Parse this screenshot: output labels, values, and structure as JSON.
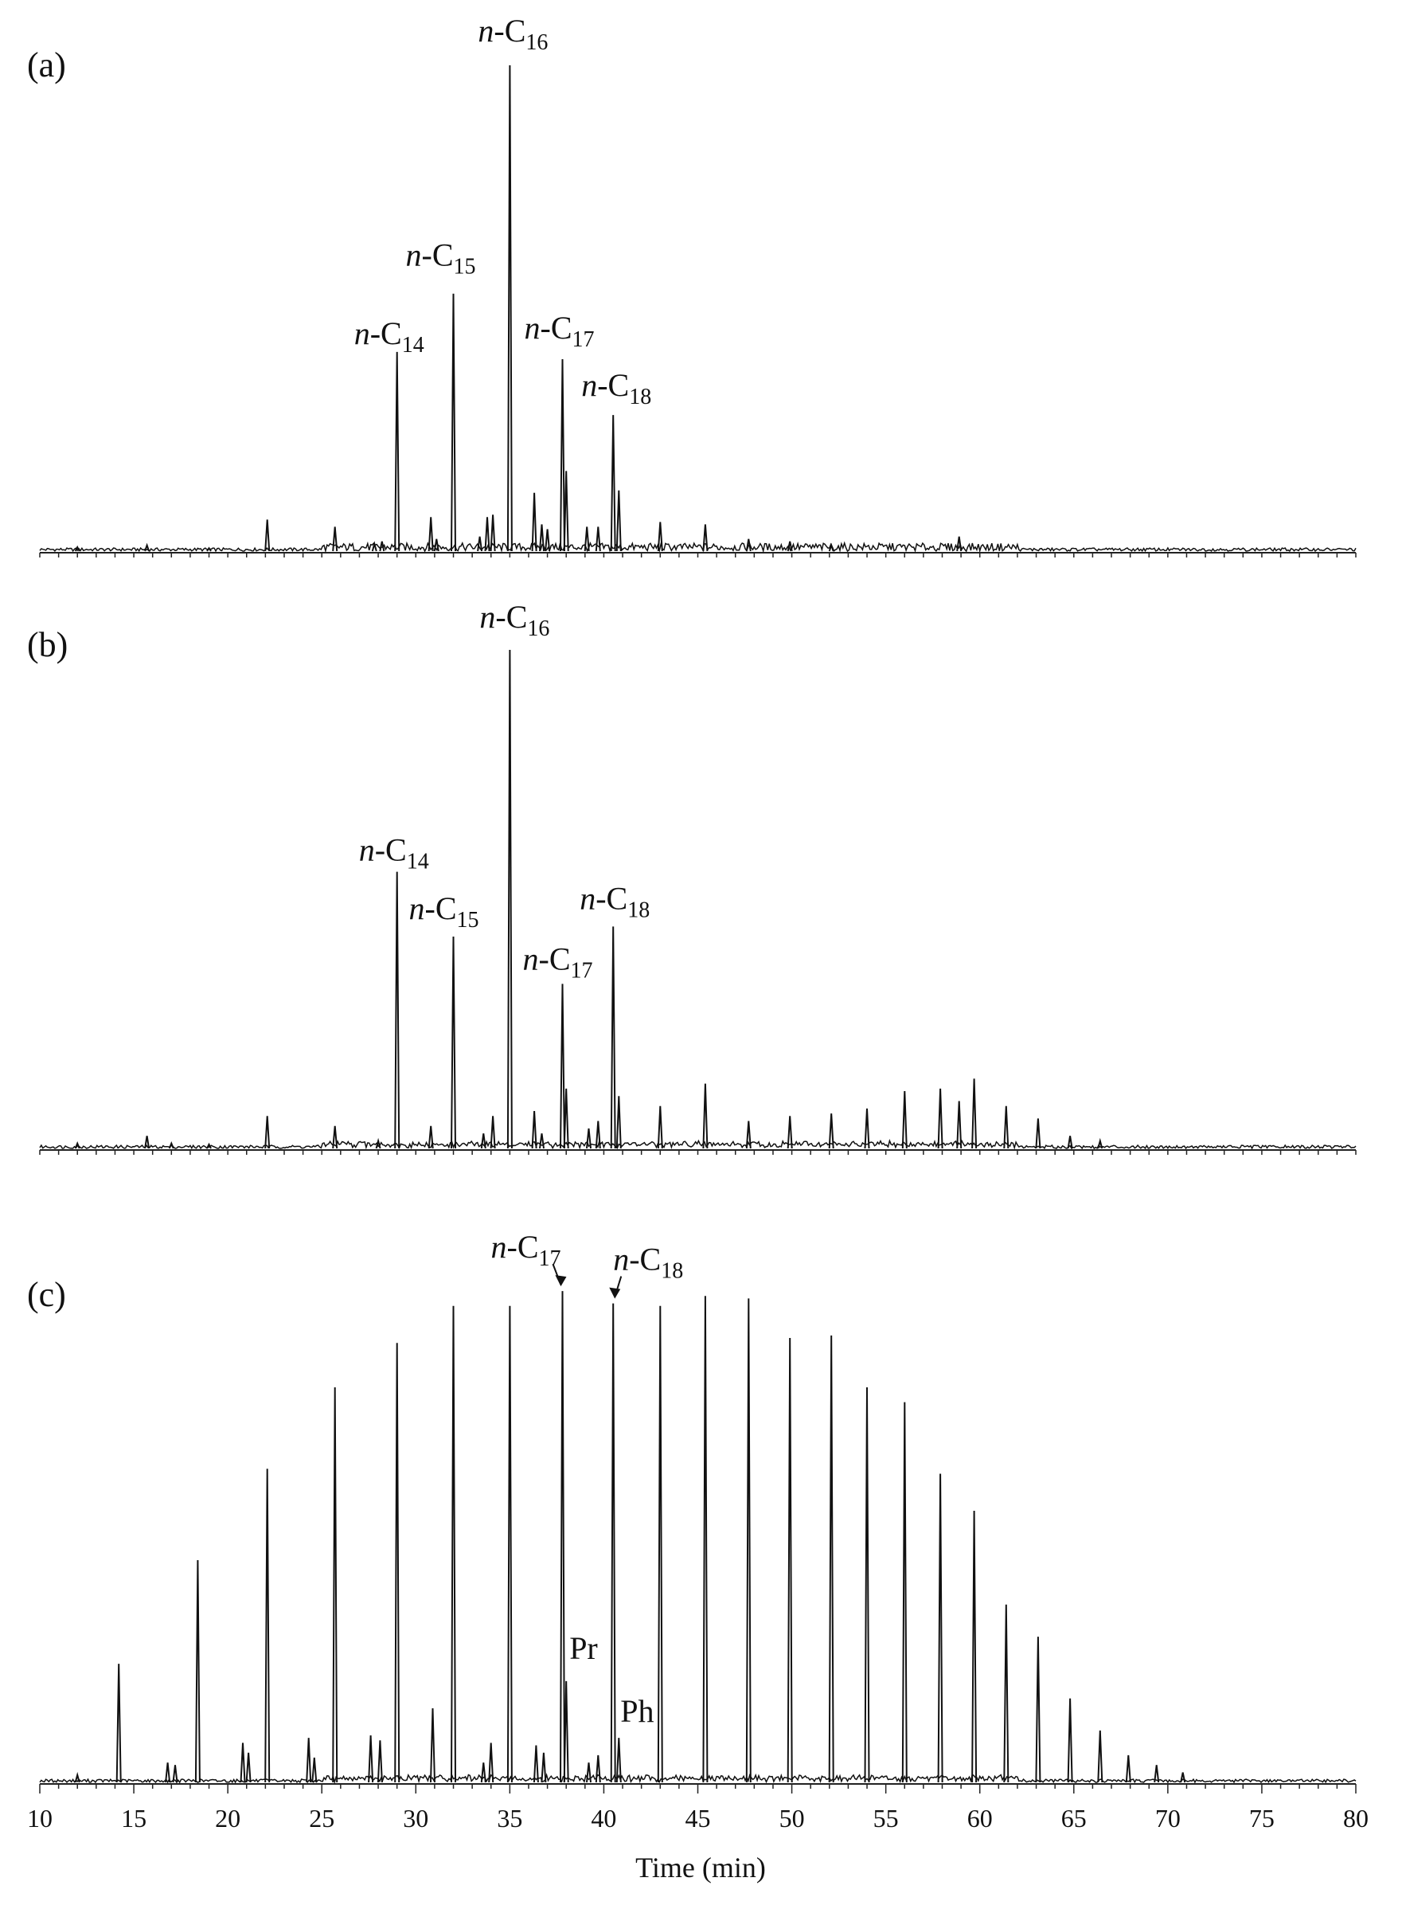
{
  "chart_data": [
    {
      "type": "line",
      "panel": "(a)",
      "xlim": [
        10,
        80
      ],
      "peaks": [
        {
          "x": 12.0,
          "h": 0.008
        },
        {
          "x": 15.7,
          "h": 0.012
        },
        {
          "x": 19.0,
          "h": 0.006
        },
        {
          "x": 22.1,
          "h": 0.065
        },
        {
          "x": 25.7,
          "h": 0.05
        },
        {
          "x": 27.8,
          "h": 0.015
        },
        {
          "x": 28.2,
          "h": 0.02
        },
        {
          "x": 29.0,
          "h": 0.41
        },
        {
          "x": 30.8,
          "h": 0.07
        },
        {
          "x": 31.1,
          "h": 0.025
        },
        {
          "x": 32.0,
          "h": 0.53
        },
        {
          "x": 33.4,
          "h": 0.03
        },
        {
          "x": 33.8,
          "h": 0.07
        },
        {
          "x": 34.1,
          "h": 0.075
        },
        {
          "x": 35.0,
          "h": 1.0
        },
        {
          "x": 36.3,
          "h": 0.12
        },
        {
          "x": 36.7,
          "h": 0.055
        },
        {
          "x": 37.0,
          "h": 0.045
        },
        {
          "x": 37.8,
          "h": 0.395
        },
        {
          "x": 38.0,
          "h": 0.165
        },
        {
          "x": 39.1,
          "h": 0.05
        },
        {
          "x": 39.7,
          "h": 0.05
        },
        {
          "x": 40.5,
          "h": 0.28
        },
        {
          "x": 40.8,
          "h": 0.125
        },
        {
          "x": 43.0,
          "h": 0.06
        },
        {
          "x": 45.4,
          "h": 0.055
        },
        {
          "x": 47.7,
          "h": 0.025
        },
        {
          "x": 49.9,
          "h": 0.02
        },
        {
          "x": 52.1,
          "h": 0.012
        },
        {
          "x": 58.9,
          "h": 0.03
        }
      ],
      "annotations": [
        {
          "prefix": "n",
          "main": "-C",
          "sub": "14",
          "x": 29.0
        },
        {
          "prefix": "n",
          "main": "-C",
          "sub": "15",
          "x": 32.0
        },
        {
          "prefix": "n",
          "main": "-C",
          "sub": "16",
          "x": 35.0
        },
        {
          "prefix": "n",
          "main": "-C",
          "sub": "17",
          "x": 37.8
        },
        {
          "prefix": "n",
          "main": "-C",
          "sub": "18",
          "x": 40.5
        }
      ]
    },
    {
      "type": "line",
      "panel": "(b)",
      "xlim": [
        10,
        80
      ],
      "peaks": [
        {
          "x": 12.0,
          "h": 0.01
        },
        {
          "x": 15.7,
          "h": 0.025
        },
        {
          "x": 17.0,
          "h": 0.01
        },
        {
          "x": 19.0,
          "h": 0.008
        },
        {
          "x": 22.1,
          "h": 0.065
        },
        {
          "x": 25.7,
          "h": 0.045
        },
        {
          "x": 28.0,
          "h": 0.015
        },
        {
          "x": 29.0,
          "h": 0.555
        },
        {
          "x": 30.8,
          "h": 0.045
        },
        {
          "x": 32.0,
          "h": 0.425
        },
        {
          "x": 33.6,
          "h": 0.03
        },
        {
          "x": 34.1,
          "h": 0.065
        },
        {
          "x": 35.0,
          "h": 1.0
        },
        {
          "x": 36.3,
          "h": 0.075
        },
        {
          "x": 36.7,
          "h": 0.03
        },
        {
          "x": 37.8,
          "h": 0.33
        },
        {
          "x": 38.0,
          "h": 0.12
        },
        {
          "x": 39.2,
          "h": 0.04
        },
        {
          "x": 39.7,
          "h": 0.055
        },
        {
          "x": 40.5,
          "h": 0.445
        },
        {
          "x": 40.8,
          "h": 0.105
        },
        {
          "x": 43.0,
          "h": 0.085
        },
        {
          "x": 45.4,
          "h": 0.13
        },
        {
          "x": 47.7,
          "h": 0.055
        },
        {
          "x": 49.9,
          "h": 0.065
        },
        {
          "x": 52.1,
          "h": 0.07
        },
        {
          "x": 54.0,
          "h": 0.08
        },
        {
          "x": 56.0,
          "h": 0.115
        },
        {
          "x": 57.9,
          "h": 0.12
        },
        {
          "x": 58.9,
          "h": 0.095
        },
        {
          "x": 59.7,
          "h": 0.14
        },
        {
          "x": 61.4,
          "h": 0.085
        },
        {
          "x": 63.1,
          "h": 0.06
        },
        {
          "x": 64.8,
          "h": 0.025
        },
        {
          "x": 66.4,
          "h": 0.015
        }
      ],
      "annotations": [
        {
          "prefix": "n",
          "main": "-C",
          "sub": "14",
          "x": 29.0
        },
        {
          "prefix": "n",
          "main": "-C",
          "sub": "15",
          "x": 32.0
        },
        {
          "prefix": "n",
          "main": "-C",
          "sub": "16",
          "x": 35.0
        },
        {
          "prefix": "n",
          "main": "-C",
          "sub": "17",
          "x": 37.8
        },
        {
          "prefix": "n",
          "main": "-C",
          "sub": "18",
          "x": 40.5
        }
      ]
    },
    {
      "type": "line",
      "panel": "(c)",
      "xlim": [
        10,
        80
      ],
      "xticks": [
        10,
        15,
        20,
        25,
        30,
        35,
        40,
        45,
        50,
        55,
        60,
        65,
        70,
        75,
        80
      ],
      "xlabel": "Time (min)",
      "peaks": [
        {
          "x": 12.0,
          "h": 0.015
        },
        {
          "x": 14.2,
          "h": 0.24
        },
        {
          "x": 16.8,
          "h": 0.04
        },
        {
          "x": 17.2,
          "h": 0.035
        },
        {
          "x": 18.4,
          "h": 0.45
        },
        {
          "x": 20.8,
          "h": 0.08
        },
        {
          "x": 21.1,
          "h": 0.06
        },
        {
          "x": 22.1,
          "h": 0.635
        },
        {
          "x": 24.3,
          "h": 0.09
        },
        {
          "x": 24.6,
          "h": 0.05
        },
        {
          "x": 25.7,
          "h": 0.8
        },
        {
          "x": 27.6,
          "h": 0.095
        },
        {
          "x": 28.1,
          "h": 0.085
        },
        {
          "x": 29.0,
          "h": 0.89
        },
        {
          "x": 30.9,
          "h": 0.15
        },
        {
          "x": 32.0,
          "h": 0.965
        },
        {
          "x": 33.6,
          "h": 0.04
        },
        {
          "x": 34.0,
          "h": 0.08
        },
        {
          "x": 35.0,
          "h": 0.965
        },
        {
          "x": 36.4,
          "h": 0.075
        },
        {
          "x": 36.8,
          "h": 0.06
        },
        {
          "x": 37.8,
          "h": 0.995
        },
        {
          "x": 38.0,
          "h": 0.205
        },
        {
          "x": 39.2,
          "h": 0.04
        },
        {
          "x": 39.7,
          "h": 0.055
        },
        {
          "x": 40.5,
          "h": 0.97
        },
        {
          "x": 40.8,
          "h": 0.09
        },
        {
          "x": 43.0,
          "h": 0.965
        },
        {
          "x": 45.4,
          "h": 0.985
        },
        {
          "x": 47.7,
          "h": 0.98
        },
        {
          "x": 49.9,
          "h": 0.9
        },
        {
          "x": 52.1,
          "h": 0.905
        },
        {
          "x": 54.0,
          "h": 0.8
        },
        {
          "x": 56.0,
          "h": 0.77
        },
        {
          "x": 57.9,
          "h": 0.625
        },
        {
          "x": 59.7,
          "h": 0.55
        },
        {
          "x": 61.4,
          "h": 0.36
        },
        {
          "x": 63.1,
          "h": 0.295
        },
        {
          "x": 64.8,
          "h": 0.17
        },
        {
          "x": 66.4,
          "h": 0.105
        },
        {
          "x": 67.9,
          "h": 0.055
        },
        {
          "x": 69.4,
          "h": 0.035
        },
        {
          "x": 70.8,
          "h": 0.02
        }
      ],
      "annotations": [
        {
          "prefix": "n",
          "main": "-C",
          "sub": "17",
          "x": 37.8,
          "arrow": true
        },
        {
          "prefix": "n",
          "main": "-C",
          "sub": "18",
          "x": 40.5,
          "arrow": true
        },
        {
          "prefix": "",
          "main": "Pr",
          "sub": "",
          "x": 38.0
        },
        {
          "prefix": "",
          "main": "Ph",
          "sub": "",
          "x": 40.8
        }
      ]
    }
  ],
  "colors": {
    "trace": "#111111",
    "axis": "#222222",
    "background": "#ffffff"
  }
}
